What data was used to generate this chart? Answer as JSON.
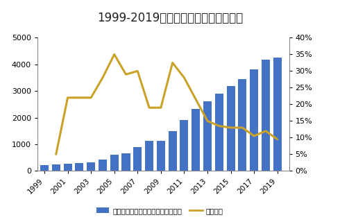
{
  "title": "1999-2019年调味品行业收入（亿元）",
  "years": [
    1999,
    2000,
    2001,
    2002,
    2003,
    2004,
    2005,
    2006,
    2007,
    2008,
    2009,
    2010,
    2011,
    2012,
    2013,
    2014,
    2015,
    2016,
    2017,
    2018,
    2019
  ],
  "revenue": [
    220,
    240,
    260,
    295,
    330,
    420,
    600,
    650,
    900,
    1120,
    1130,
    1500,
    1920,
    2320,
    2620,
    2890,
    3200,
    3450,
    3800,
    4170,
    4250
  ],
  "growth_rate": [
    null,
    5.0,
    22.0,
    22.0,
    22.0,
    28.0,
    35.0,
    29.0,
    30.0,
    19.0,
    19.0,
    32.5,
    28.0,
    21.5,
    15.0,
    13.5,
    13.0,
    13.0,
    10.5,
    12.0,
    9.5
  ],
  "bar_color": "#4472C4",
  "line_color": "#C9A227",
  "title_bg_color": "#7BAFC8",
  "left_ylim": [
    0,
    5000
  ],
  "right_ylim": [
    0,
    0.4
  ],
  "left_yticks": [
    0,
    1000,
    2000,
    3000,
    4000,
    5000
  ],
  "right_yticks": [
    0.0,
    0.05,
    0.1,
    0.15,
    0.2,
    0.25,
    0.3,
    0.35,
    0.4
  ],
  "legend_bar_label": "调味品及发酵制品行业收入（亿元）",
  "legend_line_label": "收入增速",
  "fig_bg_color": "#FFFFFF",
  "plot_bg_color": "#FFFFFF",
  "border_color": "#AAAAAA"
}
